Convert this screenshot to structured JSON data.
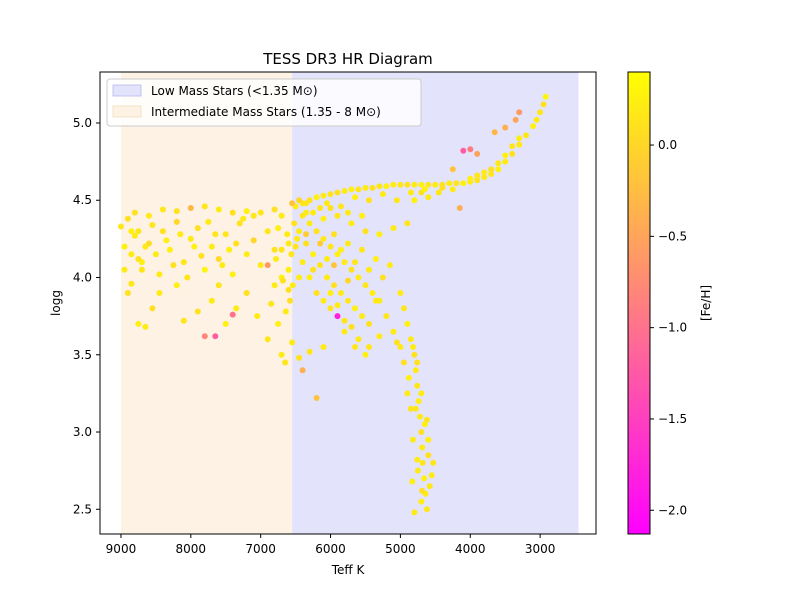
{
  "chart_data": {
    "type": "scatter",
    "title": "TESS DR3 HR Diagram",
    "xlabel": "Teff K",
    "ylabel": "logg",
    "xlim": [
      9300,
      2200
    ],
    "ylim": [
      2.34,
      5.33
    ],
    "x_inverted": true,
    "x_ticks": [
      9000,
      8000,
      7000,
      6000,
      5000,
      4000,
      3000
    ],
    "y_ticks": [
      2.5,
      3.0,
      3.5,
      4.0,
      4.5,
      5.0
    ],
    "grid": false,
    "legend": {
      "placement": "top-left",
      "entries": [
        {
          "label": "Low Mass Stars (<1.35 M⊙)",
          "color": "#e3e3fc"
        },
        {
          "label": "Intermediate Mass Stars (1.35 - 8 M⊙)",
          "color": "#fdf2e3"
        }
      ]
    },
    "regions": [
      {
        "name": "Intermediate Mass Stars (1.35 - 8 M⊙)",
        "teff_range": [
          6550,
          9000
        ],
        "color": "#fdf2e3"
      },
      {
        "name": "Low Mass Stars (<1.35 M⊙)",
        "teff_range": [
          2450,
          6550
        ],
        "color": "#e3e3fc"
      }
    ],
    "colorbar": {
      "label": "[Fe/H]",
      "range": [
        -2.13,
        0.4
      ],
      "ticks": [
        0.0,
        -0.5,
        -1.0,
        -1.5,
        -2.0
      ],
      "tick_labels": [
        "0.0",
        "−0.5",
        "−1.0",
        "−1.5",
        "−2.0"
      ],
      "colormap": "spring"
    },
    "points": [
      [
        8900,
        4.38,
        0.1
      ],
      [
        8800,
        4.27,
        0.2
      ],
      [
        8700,
        4.05,
        0.15
      ],
      [
        8600,
        4.22,
        0.05
      ],
      [
        8500,
        4.15,
        0.2
      ],
      [
        8400,
        4.3,
        0.1
      ],
      [
        8300,
        4.18,
        0.25
      ],
      [
        8200,
        4.36,
        0.0
      ],
      [
        8100,
        4.1,
        0.15
      ],
      [
        8000,
        4.25,
        0.2
      ],
      [
        7900,
        4.32,
        0.1
      ],
      [
        7800,
        4.05,
        0.3
      ],
      [
        7700,
        4.2,
        0.2
      ],
      [
        7600,
        4.12,
        0.05
      ],
      [
        7500,
        4.28,
        0.15
      ],
      [
        7400,
        4.02,
        0.25
      ],
      [
        7300,
        4.35,
        0.1
      ],
      [
        7200,
        4.15,
        0.2
      ],
      [
        7100,
        4.24,
        0.0
      ],
      [
        7000,
        4.08,
        0.2
      ],
      [
        6900,
        4.3,
        0.15
      ],
      [
        6800,
        4.18,
        0.1
      ],
      [
        6700,
        4.0,
        0.25
      ],
      [
        6600,
        4.22,
        0.2
      ],
      [
        8950,
        4.05,
        0.2
      ],
      [
        8850,
        3.96,
        0.15
      ],
      [
        8750,
        3.7,
        0.25
      ],
      [
        8650,
        3.68,
        0.2
      ],
      [
        8550,
        3.8,
        0.1
      ],
      [
        8450,
        3.9,
        0.2
      ],
      [
        8200,
        3.95,
        0.25
      ],
      [
        8100,
        3.72,
        0.15
      ],
      [
        7900,
        3.78,
        0.1
      ],
      [
        7800,
        3.62,
        -0.8
      ],
      [
        7700,
        3.85,
        0.2
      ],
      [
        7600,
        3.95,
        0.15
      ],
      [
        7500,
        3.7,
        0.25
      ],
      [
        7350,
        3.8,
        0.2
      ],
      [
        7200,
        3.9,
        0.1
      ],
      [
        7050,
        3.75,
        0.2
      ],
      [
        6900,
        3.6,
        0.15
      ],
      [
        6750,
        3.7,
        0.25
      ],
      [
        6700,
        3.5,
        0.2
      ],
      [
        6650,
        3.45,
        0.15
      ],
      [
        6550,
        3.58,
        0.2
      ],
      [
        6450,
        3.48,
        0.1
      ],
      [
        6400,
        3.4,
        -0.4
      ],
      [
        6300,
        3.52,
        0.15
      ],
      [
        6200,
        3.22,
        -0.2
      ],
      [
        6100,
        3.55,
        0.2
      ],
      [
        5900,
        3.75,
        -1.8
      ],
      [
        5800,
        3.65,
        0.2
      ],
      [
        5650,
        3.55,
        0.15
      ],
      [
        5500,
        3.5,
        0.25
      ],
      [
        8800,
        4.42,
        0.1
      ],
      [
        8600,
        4.4,
        0.2
      ],
      [
        8400,
        4.44,
        0.15
      ],
      [
        8200,
        4.43,
        0.1
      ],
      [
        8000,
        4.45,
        -0.3
      ],
      [
        7800,
        4.46,
        0.15
      ],
      [
        7600,
        4.44,
        0.2
      ],
      [
        7400,
        4.42,
        0.1
      ],
      [
        7200,
        4.43,
        0.25
      ],
      [
        7000,
        4.42,
        0.15
      ],
      [
        6800,
        4.44,
        0.1
      ],
      [
        6700,
        4.4,
        0.2
      ],
      [
        9000,
        4.33,
        0.15
      ],
      [
        8950,
        4.2,
        0.25
      ],
      [
        8900,
        3.9,
        0.1
      ],
      [
        8850,
        4.15,
        0.2
      ],
      [
        8750,
        4.3,
        0.15
      ],
      [
        8700,
        4.1,
        0.25
      ],
      [
        7650,
        3.62,
        -1.2
      ],
      [
        7400,
        3.76,
        -1.0
      ],
      [
        6900,
        4.08,
        -0.6
      ],
      [
        6850,
        3.83,
        0.15
      ],
      [
        6800,
        3.95,
        0.2
      ],
      [
        6600,
        3.92,
        0.1
      ],
      [
        6500,
        4.46,
        0.2
      ],
      [
        6400,
        4.48,
        0.15
      ],
      [
        6300,
        4.5,
        0.1
      ],
      [
        6200,
        4.52,
        0.25
      ],
      [
        6100,
        4.53,
        0.2
      ],
      [
        6000,
        4.54,
        0.15
      ],
      [
        5900,
        4.55,
        0.1
      ],
      [
        5800,
        4.56,
        0.2
      ],
      [
        5700,
        4.57,
        0.25
      ],
      [
        5600,
        4.57,
        0.15
      ],
      [
        5500,
        4.58,
        0.2
      ],
      [
        5400,
        4.58,
        0.1
      ],
      [
        5300,
        4.59,
        0.15
      ],
      [
        5200,
        4.59,
        0.25
      ],
      [
        5100,
        4.6,
        0.2
      ],
      [
        5000,
        4.6,
        0.15
      ],
      [
        4900,
        4.6,
        0.1
      ],
      [
        4800,
        4.6,
        0.2
      ],
      [
        4700,
        4.6,
        0.25
      ],
      [
        4600,
        4.6,
        0.15
      ],
      [
        4500,
        4.6,
        0.2
      ],
      [
        4400,
        4.6,
        0.1
      ],
      [
        4300,
        4.61,
        0.2
      ],
      [
        4200,
        4.61,
        0.15
      ],
      [
        4100,
        4.61,
        0.25
      ],
      [
        4000,
        4.62,
        0.2
      ],
      [
        3900,
        4.63,
        0.1
      ],
      [
        3800,
        4.65,
        0.2
      ],
      [
        3700,
        4.67,
        0.15
      ],
      [
        3600,
        4.7,
        0.25
      ],
      [
        3500,
        4.75,
        0.2
      ],
      [
        3400,
        4.8,
        0.1
      ],
      [
        3300,
        4.86,
        0.2
      ],
      [
        3200,
        4.92,
        0.15
      ],
      [
        3100,
        4.98,
        0.25
      ],
      [
        3050,
        5.02,
        0.2
      ],
      [
        3000,
        5.07,
        0.15
      ],
      [
        2950,
        5.12,
        0.1
      ],
      [
        2920,
        5.17,
        0.3
      ],
      [
        3300,
        4.9,
        0.2
      ],
      [
        3400,
        4.85,
        0.15
      ],
      [
        3500,
        4.79,
        0.25
      ],
      [
        3600,
        4.74,
        0.2
      ],
      [
        3700,
        4.7,
        0.1
      ],
      [
        3800,
        4.68,
        0.2
      ],
      [
        3900,
        4.66,
        0.15
      ],
      [
        4000,
        4.64,
        0.25
      ],
      [
        3350,
        5.02,
        -0.5
      ],
      [
        3500,
        4.97,
        -0.4
      ],
      [
        3650,
        4.94,
        -0.3
      ],
      [
        3300,
        5.07,
        -0.6
      ],
      [
        3900,
        4.8,
        -0.5
      ],
      [
        4100,
        4.82,
        -1.2
      ],
      [
        4000,
        4.83,
        -0.9
      ],
      [
        4150,
        4.45,
        -0.4
      ],
      [
        4250,
        4.7,
        -0.2
      ],
      [
        4450,
        4.55,
        0.15
      ],
      [
        4700,
        4.55,
        0.1
      ],
      [
        4600,
        4.52,
        0.2
      ],
      [
        4800,
        4.5,
        0.25
      ],
      [
        6400,
        4.4,
        0.15
      ],
      [
        6300,
        4.35,
        0.2
      ],
      [
        6200,
        4.3,
        0.1
      ],
      [
        6100,
        4.25,
        0.2
      ],
      [
        6000,
        4.2,
        0.15
      ],
      [
        5900,
        4.15,
        0.25
      ],
      [
        5800,
        4.1,
        0.2
      ],
      [
        5700,
        4.05,
        0.1
      ],
      [
        5600,
        4.0,
        0.2
      ],
      [
        5500,
        3.95,
        0.15
      ],
      [
        5400,
        3.9,
        0.25
      ],
      [
        5300,
        3.85,
        0.2
      ],
      [
        6500,
        4.2,
        0.15
      ],
      [
        6400,
        4.1,
        0.2
      ],
      [
        6300,
        4.0,
        0.25
      ],
      [
        6200,
        3.9,
        0.1
      ],
      [
        6100,
        3.85,
        0.2
      ],
      [
        6000,
        3.8,
        0.15
      ],
      [
        6450,
        4.3,
        0.2
      ],
      [
        6350,
        4.22,
        0.1
      ],
      [
        6250,
        4.15,
        0.25
      ],
      [
        6150,
        4.08,
        0.15
      ],
      [
        6050,
        4.0,
        0.2
      ],
      [
        5950,
        3.95,
        0.1
      ],
      [
        5850,
        3.9,
        0.2
      ],
      [
        5750,
        3.85,
        0.15
      ],
      [
        5650,
        3.8,
        0.25
      ],
      [
        5550,
        3.75,
        0.2
      ],
      [
        5450,
        3.7,
        0.1
      ],
      [
        5350,
        3.85,
        0.2
      ],
      [
        5900,
        4.4,
        0.15
      ],
      [
        5700,
        4.35,
        0.2
      ],
      [
        5500,
        4.3,
        0.1
      ],
      [
        5300,
        4.28,
        0.25
      ],
      [
        5100,
        4.32,
        0.2
      ],
      [
        4900,
        4.35,
        0.15
      ],
      [
        5000,
        3.9,
        0.2
      ],
      [
        4950,
        3.8,
        0.15
      ],
      [
        4900,
        3.7,
        0.25
      ],
      [
        4850,
        3.6,
        0.2
      ],
      [
        4800,
        3.5,
        0.1
      ],
      [
        4780,
        3.4,
        0.2
      ],
      [
        4760,
        3.3,
        0.15
      ],
      [
        4740,
        3.2,
        0.25
      ],
      [
        4720,
        3.1,
        0.2
      ],
      [
        4700,
        3.0,
        0.1
      ],
      [
        4690,
        2.9,
        0.2
      ],
      [
        4680,
        2.8,
        0.15
      ],
      [
        4660,
        2.7,
        0.25
      ],
      [
        4640,
        2.6,
        0.2
      ],
      [
        4620,
        2.5,
        0.15
      ],
      [
        4820,
        3.55,
        0.2
      ],
      [
        4760,
        3.45,
        0.1
      ],
      [
        4700,
        3.25,
        0.2
      ],
      [
        4780,
        3.15,
        0.15
      ],
      [
        4650,
        3.05,
        0.25
      ],
      [
        4820,
        2.95,
        0.2
      ],
      [
        4600,
        2.85,
        0.1
      ],
      [
        4750,
        2.75,
        0.2
      ],
      [
        4580,
        2.65,
        0.15
      ],
      [
        4700,
        2.55,
        0.25
      ],
      [
        4800,
        2.48,
        0.2
      ],
      [
        5200,
        3.75,
        0.15
      ],
      [
        5100,
        3.65,
        0.2
      ],
      [
        5050,
        3.58,
        0.1
      ],
      [
        5300,
        3.62,
        0.2
      ],
      [
        4900,
        3.25,
        0.2
      ],
      [
        4850,
        3.15,
        0.15
      ],
      [
        4880,
        3.35,
        0.25
      ],
      [
        4950,
        3.45,
        0.1
      ],
      [
        5000,
        3.55,
        0.2
      ],
      [
        4600,
        2.95,
        0.25
      ],
      [
        4550,
        2.72,
        0.2
      ],
      [
        4620,
        3.08,
        0.15
      ],
      [
        4690,
        2.62,
        0.1
      ],
      [
        4760,
        2.82,
        0.2
      ],
      [
        4530,
        2.8,
        0.15
      ],
      [
        4830,
        2.68,
        0.25
      ],
      [
        6520,
        4.35,
        0.1
      ],
      [
        6480,
        4.25,
        0.2
      ],
      [
        6560,
        4.15,
        0.15
      ],
      [
        6600,
        4.05,
        0.25
      ],
      [
        6540,
        3.95,
        0.2
      ],
      [
        6580,
        3.85,
        0.1
      ],
      [
        6620,
        4.28,
        0.2
      ],
      [
        6700,
        4.18,
        0.15
      ],
      [
        6750,
        4.32,
        0.25
      ],
      [
        6780,
        4.12,
        0.2
      ],
      [
        6680,
        3.98,
        0.1
      ],
      [
        6640,
        3.78,
        0.2
      ],
      [
        7100,
        4.4,
        0.15
      ],
      [
        7250,
        4.38,
        0.2
      ],
      [
        7350,
        4.22,
        0.1
      ],
      [
        7450,
        4.18,
        0.25
      ],
      [
        7550,
        4.08,
        0.2
      ],
      [
        7650,
        4.28,
        0.15
      ],
      [
        7750,
        4.36,
        0.2
      ],
      [
        7850,
        4.14,
        0.1
      ],
      [
        7950,
        4.2,
        0.25
      ],
      [
        8050,
        4.0,
        0.15
      ],
      [
        8150,
        4.28,
        0.2
      ],
      [
        8250,
        4.08,
        0.1
      ],
      [
        8350,
        4.24,
        0.25
      ],
      [
        8450,
        4.02,
        0.2
      ],
      [
        8550,
        4.34,
        0.15
      ],
      [
        8650,
        4.2,
        0.2
      ],
      [
        8750,
        4.12,
        0.1
      ],
      [
        8850,
        4.3,
        0.25
      ],
      [
        6050,
        4.48,
        0.2
      ],
      [
        5850,
        4.46,
        0.15
      ],
      [
        5650,
        4.52,
        0.25
      ],
      [
        5450,
        4.5,
        0.1
      ],
      [
        5250,
        4.54,
        0.2
      ],
      [
        5050,
        4.5,
        0.15
      ],
      [
        4850,
        4.55,
        0.2
      ],
      [
        4650,
        4.57,
        0.25
      ],
      [
        4400,
        4.58,
        0.1
      ],
      [
        4250,
        4.57,
        0.2
      ],
      [
        6150,
        4.45,
        0.15
      ],
      [
        6350,
        4.42,
        0.2
      ],
      [
        5950,
        4.28,
        0.1
      ],
      [
        5750,
        4.22,
        0.2
      ],
      [
        5550,
        4.18,
        0.15
      ],
      [
        5350,
        4.12,
        0.25
      ],
      [
        5150,
        4.08,
        0.2
      ],
      [
        5250,
        4.0,
        0.1
      ],
      [
        5450,
        4.05,
        0.2
      ],
      [
        5650,
        4.1,
        0.15
      ],
      [
        5850,
        4.18,
        0.25
      ],
      [
        6050,
        4.12,
        0.2
      ],
      [
        6250,
        4.05,
        0.1
      ],
      [
        6450,
        4.0,
        0.2
      ],
      [
        6000,
        3.9,
        0.25
      ],
      [
        5900,
        3.82,
        0.2
      ],
      [
        5800,
        3.72,
        0.15
      ],
      [
        5700,
        3.68,
        0.1
      ],
      [
        5600,
        3.6,
        0.2
      ],
      [
        5450,
        3.55,
        0.15
      ],
      [
        6100,
        4.38,
        0.25
      ],
      [
        6250,
        4.42,
        0.2
      ],
      [
        6350,
        4.48,
        0.15
      ],
      [
        6000,
        4.45,
        0.1
      ],
      [
        5750,
        4.42,
        0.2
      ],
      [
        5550,
        4.4,
        0.25
      ],
      [
        6150,
        4.22,
        -0.1
      ],
      [
        5950,
        4.08,
        -0.2
      ],
      [
        5750,
        3.98,
        0.0
      ],
      [
        6350,
        4.28,
        -0.1
      ],
      [
        6550,
        4.48,
        -0.2
      ],
      [
        6450,
        4.5,
        0.0
      ]
    ]
  }
}
